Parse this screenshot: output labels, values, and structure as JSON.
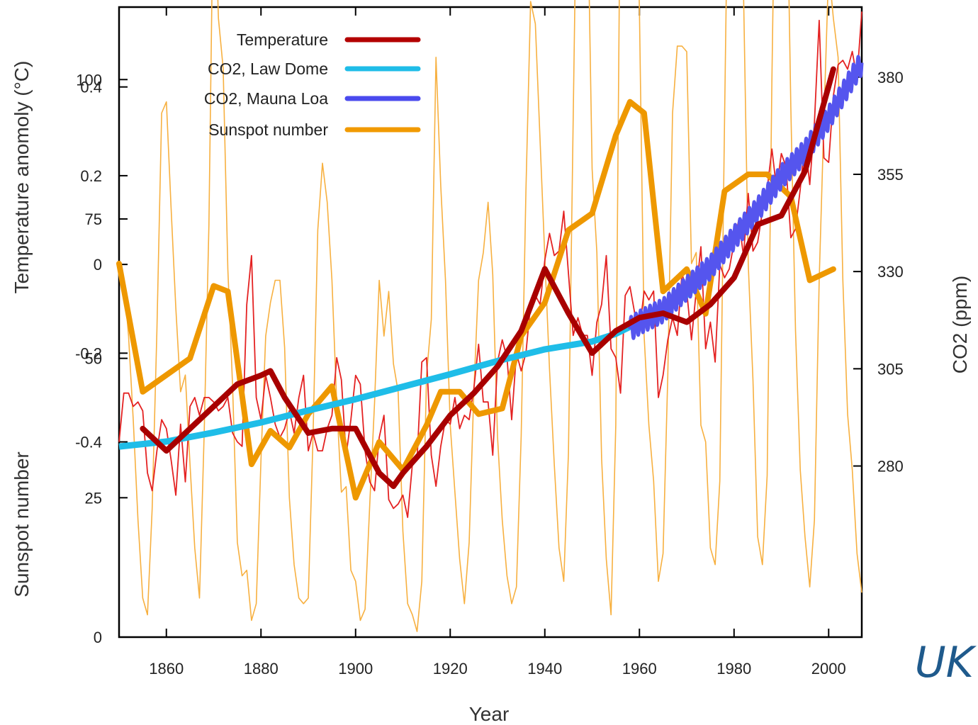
{
  "chart_data": {
    "type": "line",
    "title": "",
    "xlabel": "Year",
    "ylabel_left_top": "Temperature anomoly (°C)",
    "ylabel_left_bottom": "Sunspot number",
    "ylabel_right": "CO2 (ppm)",
    "xlim": [
      1850,
      2007
    ],
    "x_ticks": [
      1860,
      1880,
      1900,
      1920,
      1940,
      1960,
      1980,
      2000
    ],
    "temp_ylim": [
      -0.84,
      0.58
    ],
    "temp_ticks": [
      0.4,
      0.2,
      0,
      -0.2,
      -0.4
    ],
    "temp_tick_labels": [
      "0.4",
      "0.2",
      "0",
      "-0.2",
      "-0.4"
    ],
    "sunspot_ylim": [
      0,
      113
    ],
    "sunspot_ticks": [
      0,
      25,
      50,
      75,
      100
    ],
    "co2_ylim": [
      236,
      398
    ],
    "co2_ticks": [
      280,
      305,
      330,
      355,
      380
    ],
    "legend": {
      "position": "top-left",
      "items": [
        {
          "label": "Temperature",
          "color": "#b30000"
        },
        {
          "label": "CO2, Law Dome",
          "color": "#1fbde8"
        },
        {
          "label": "CO2, Mauna Loa",
          "color": "#4a4aee"
        },
        {
          "label": "Sunspot number",
          "color": "#f19a00"
        }
      ]
    },
    "series": [
      {
        "name": "Temperature",
        "axis": "temperature",
        "color": "#e02020",
        "annual_x": [
          1850,
          1851,
          1852,
          1853,
          1854,
          1855,
          1856,
          1857,
          1858,
          1859,
          1860,
          1861,
          1862,
          1863,
          1864,
          1865,
          1866,
          1867,
          1868,
          1869,
          1870,
          1871,
          1872,
          1873,
          1874,
          1875,
          1876,
          1877,
          1878,
          1879,
          1880,
          1881,
          1882,
          1883,
          1884,
          1885,
          1886,
          1887,
          1888,
          1889,
          1890,
          1891,
          1892,
          1893,
          1894,
          1895,
          1896,
          1897,
          1898,
          1899,
          1900,
          1901,
          1902,
          1903,
          1904,
          1905,
          1906,
          1907,
          1908,
          1909,
          1910,
          1911,
          1912,
          1913,
          1914,
          1915,
          1916,
          1917,
          1918,
          1919,
          1920,
          1921,
          1922,
          1923,
          1924,
          1925,
          1926,
          1927,
          1928,
          1929,
          1930,
          1931,
          1932,
          1933,
          1934,
          1935,
          1936,
          1937,
          1938,
          1939,
          1940,
          1941,
          1942,
          1943,
          1944,
          1945,
          1946,
          1947,
          1948,
          1949,
          1950,
          1951,
          1952,
          1953,
          1954,
          1955,
          1956,
          1957,
          1958,
          1959,
          1960,
          1961,
          1962,
          1963,
          1964,
          1965,
          1966,
          1967,
          1968,
          1969,
          1970,
          1971,
          1972,
          1973,
          1974,
          1975,
          1976,
          1977,
          1978,
          1979,
          1980,
          1981,
          1982,
          1983,
          1984,
          1985,
          1986,
          1987,
          1988,
          1989,
          1990,
          1991,
          1992,
          1993,
          1994,
          1995,
          1996,
          1997,
          1998,
          1999,
          2000,
          2001,
          2002,
          2003,
          2004,
          2005,
          2006,
          2007
        ],
        "annual_y": [
          -0.4,
          -0.29,
          -0.29,
          -0.32,
          -0.31,
          -0.33,
          -0.47,
          -0.51,
          -0.42,
          -0.35,
          -0.37,
          -0.44,
          -0.52,
          -0.36,
          -0.49,
          -0.32,
          -0.3,
          -0.34,
          -0.3,
          -0.3,
          -0.31,
          -0.33,
          -0.32,
          -0.3,
          -0.38,
          -0.4,
          -0.41,
          -0.09,
          0.02,
          -0.3,
          -0.35,
          -0.25,
          -0.3,
          -0.36,
          -0.39,
          -0.37,
          -0.33,
          -0.38,
          -0.3,
          -0.25,
          -0.42,
          -0.38,
          -0.42,
          -0.42,
          -0.37,
          -0.34,
          -0.21,
          -0.26,
          -0.43,
          -0.35,
          -0.25,
          -0.27,
          -0.42,
          -0.49,
          -0.51,
          -0.39,
          -0.34,
          -0.53,
          -0.55,
          -0.54,
          -0.52,
          -0.57,
          -0.45,
          -0.44,
          -0.22,
          -0.21,
          -0.43,
          -0.5,
          -0.41,
          -0.35,
          -0.36,
          -0.3,
          -0.37,
          -0.34,
          -0.35,
          -0.28,
          -0.18,
          -0.31,
          -0.31,
          -0.43,
          -0.22,
          -0.17,
          -0.21,
          -0.35,
          -0.2,
          -0.24,
          -0.2,
          -0.09,
          -0.07,
          -0.09,
          0.01,
          0.07,
          0.02,
          0.03,
          0.12,
          -0.02,
          -0.16,
          -0.12,
          -0.16,
          -0.16,
          -0.25,
          -0.13,
          -0.09,
          0.02,
          -0.19,
          -0.21,
          -0.29,
          -0.07,
          -0.05,
          -0.11,
          -0.15,
          -0.06,
          -0.08,
          -0.06,
          -0.3,
          -0.25,
          -0.17,
          -0.12,
          -0.16,
          -0.02,
          -0.06,
          -0.17,
          -0.06,
          0.04,
          -0.19,
          -0.13,
          -0.22,
          0.0,
          -0.03,
          -0.01,
          0.05,
          0.1,
          0.02,
          0.16,
          0.03,
          0.05,
          0.12,
          0.17,
          0.26,
          0.17,
          0.25,
          0.22,
          0.06,
          0.08,
          0.17,
          0.28,
          0.18,
          0.32,
          0.55,
          0.24,
          0.23,
          0.38,
          0.45,
          0.46,
          0.44,
          0.48,
          0.42,
          0.57
        ],
        "smooth_x": [
          1855,
          1860,
          1865,
          1870,
          1875,
          1880,
          1882,
          1885,
          1890,
          1895,
          1900,
          1905,
          1908,
          1910,
          1915,
          1920,
          1925,
          1930,
          1935,
          1940,
          1945,
          1950,
          1955,
          1960,
          1965,
          1970,
          1975,
          1980,
          1985,
          1990,
          1995,
          2001
        ],
        "smooth_y": [
          -0.37,
          -0.42,
          -0.37,
          -0.32,
          -0.27,
          -0.25,
          -0.24,
          -0.3,
          -0.38,
          -0.37,
          -0.37,
          -0.47,
          -0.5,
          -0.47,
          -0.41,
          -0.34,
          -0.29,
          -0.23,
          -0.15,
          -0.01,
          -0.11,
          -0.2,
          -0.15,
          -0.12,
          -0.11,
          -0.13,
          -0.09,
          -0.03,
          0.09,
          0.11,
          0.21,
          0.44
        ]
      },
      {
        "name": "CO2, Law Dome",
        "axis": "co2",
        "color": "#1fbde8",
        "x": [
          1850,
          1860,
          1870,
          1880,
          1890,
          1900,
          1910,
          1920,
          1930,
          1940,
          1950,
          1955,
          1960,
          1965,
          1970,
          1975
        ],
        "y": [
          285.0,
          286.3,
          288.6,
          291.2,
          294.3,
          297.2,
          300.4,
          303.6,
          307.0,
          310.0,
          312.0,
          314.0,
          317.0,
          320.0,
          324.0,
          330.0
        ]
      },
      {
        "name": "CO2, Mauna Loa",
        "axis": "co2",
        "color": "#4a4aee",
        "x": [
          1958,
          1960,
          1965,
          1970,
          1975,
          1980,
          1985,
          1990,
          1995,
          2000,
          2005,
          2007
        ],
        "y": [
          315.2,
          316.9,
          320.0,
          325.7,
          331.1,
          338.7,
          346.0,
          354.4,
          360.8,
          369.5,
          379.8,
          383.7
        ]
      },
      {
        "name": "Sunspot number",
        "axis": "sunspot",
        "color": "#f7a630",
        "annual_x": [
          1850,
          1851,
          1852,
          1853,
          1854,
          1855,
          1856,
          1857,
          1858,
          1859,
          1860,
          1861,
          1862,
          1863,
          1864,
          1865,
          1866,
          1867,
          1868,
          1869,
          1870,
          1871,
          1872,
          1873,
          1874,
          1875,
          1876,
          1877,
          1878,
          1879,
          1880,
          1881,
          1882,
          1883,
          1884,
          1885,
          1886,
          1887,
          1888,
          1889,
          1890,
          1891,
          1892,
          1893,
          1894,
          1895,
          1896,
          1897,
          1898,
          1899,
          1900,
          1901,
          1902,
          1903,
          1904,
          1905,
          1906,
          1907,
          1908,
          1909,
          1910,
          1911,
          1912,
          1913,
          1914,
          1915,
          1916,
          1917,
          1918,
          1919,
          1920,
          1921,
          1922,
          1923,
          1924,
          1925,
          1926,
          1927,
          1928,
          1929,
          1930,
          1931,
          1932,
          1933,
          1934,
          1935,
          1936,
          1937,
          1938,
          1939,
          1940,
          1941,
          1942,
          1943,
          1944,
          1945,
          1946,
          1947,
          1948,
          1949,
          1950,
          1951,
          1952,
          1953,
          1954,
          1955,
          1956,
          1957,
          1958,
          1959,
          1960,
          1961,
          1962,
          1963,
          1964,
          1965,
          1966,
          1967,
          1968,
          1969,
          1970,
          1971,
          1972,
          1973,
          1974,
          1975,
          1976,
          1977,
          1978,
          1979,
          1980,
          1981,
          1982,
          1983,
          1984,
          1985,
          1986,
          1987,
          1988,
          1989,
          1990,
          1991,
          1992,
          1993,
          1994,
          1995,
          1996,
          1997,
          1998,
          1999,
          2000,
          2001,
          2002,
          2003,
          2004,
          2005,
          2006,
          2007
        ],
        "annual_y": [
          66,
          64,
          54,
          39,
          21,
          7,
          4,
          23,
          55,
          94,
          96,
          77,
          59,
          44,
          47,
          31,
          16,
          7,
          37,
          74,
          139,
          111,
          102,
          66,
          45,
          17,
          11,
          12,
          3,
          6,
          32,
          54,
          60,
          64,
          64,
          52,
          25,
          13,
          7,
          6,
          7,
          36,
          73,
          85,
          78,
          64,
          42,
          26,
          27,
          12,
          10,
          3,
          5,
          24,
          42,
          64,
          54,
          62,
          49,
          44,
          19,
          6,
          4,
          1,
          10,
          47,
          57,
          104,
          81,
          64,
          38,
          26,
          14,
          6,
          17,
          44,
          64,
          69,
          78,
          65,
          36,
          21,
          11,
          6,
          9,
          36,
          80,
          114,
          110,
          89,
          68,
          48,
          31,
          16,
          10,
          33,
          93,
          152,
          136,
          135,
          84,
          69,
          32,
          14,
          4,
          38,
          142,
          190,
          185,
          159,
          112,
          54,
          38,
          28,
          10,
          15,
          47,
          94,
          106,
          106,
          105,
          67,
          69,
          38,
          35,
          16,
          13,
          28,
          93,
          155,
          155,
          141,
          116,
          67,
          46,
          18,
          13,
          29,
          100,
          158,
          142,
          146,
          95,
          55,
          30,
          18,
          9,
          21,
          64,
          93,
          120,
          111,
          104,
          64,
          40,
          30,
          15,
          8
        ],
        "smooth_x": [
          1850,
          1855,
          1860,
          1865,
          1870,
          1873,
          1878,
          1882,
          1886,
          1890,
          1895,
          1900,
          1905,
          1910,
          1915,
          1918,
          1922,
          1926,
          1931,
          1935,
          1940,
          1945,
          1950,
          1955,
          1958,
          1961,
          1965,
          1970,
          1974,
          1978,
          1983,
          1987,
          1992,
          1996,
          2001
        ],
        "smooth_y": [
          67,
          44,
          47,
          50,
          63,
          62,
          31,
          37,
          34,
          40,
          45,
          25,
          35,
          30,
          38,
          44,
          44,
          40,
          41,
          54,
          60,
          73,
          76,
          90,
          96,
          94,
          62,
          66,
          58,
          80,
          83,
          83,
          79,
          64,
          66
        ]
      }
    ]
  },
  "watermark": "UK"
}
